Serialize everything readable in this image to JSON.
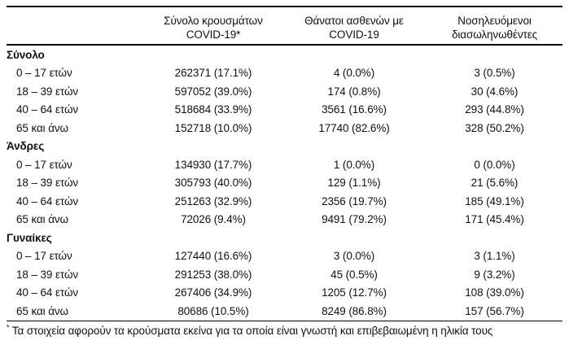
{
  "colors": {
    "text": "#111111",
    "line": "#000000",
    "background": "#ffffff"
  },
  "table": {
    "column_headers": [
      {
        "line1": "Σύνολο κρουσμάτων",
        "line2": "COVID-19*"
      },
      {
        "line1": "Θάνατοι ασθενών με",
        "line2": "COVID-19"
      },
      {
        "line1": "Νοσηλευόμενοι",
        "line2": "διασωληνωθέντες"
      }
    ],
    "sections": [
      {
        "label": "Σύνολο",
        "rows": [
          {
            "label": "0 – 17 ετών",
            "cases": "262371 (17.1%)",
            "deaths": "4 (0.0%)",
            "intubated": "3 (0.5%)"
          },
          {
            "label": "18 – 39 ετών",
            "cases": "597052 (39.0%)",
            "deaths": "174 (0.8%)",
            "intubated": "30 (4.6%)"
          },
          {
            "label": "40 – 64 ετών",
            "cases": "518684 (33.9%)",
            "deaths": "3561 (16.6%)",
            "intubated": "293 (44.8%)"
          },
          {
            "label": "65 και άνω",
            "cases": "152718 (10.0%)",
            "deaths": "17740 (82.6%)",
            "intubated": "328 (50.2%)"
          }
        ]
      },
      {
        "label": "Άνδρες",
        "rows": [
          {
            "label": "0 – 17 ετών",
            "cases": "134930 (17.7%)",
            "deaths": "1 (0.0%)",
            "intubated": "0 (0.0%)"
          },
          {
            "label": "18 – 39 ετών",
            "cases": "305793 (40.0%)",
            "deaths": "129 (1.1%)",
            "intubated": "21 (5.6%)"
          },
          {
            "label": "40 – 64 ετών",
            "cases": "251263 (32.9%)",
            "deaths": "2356 (19.7%)",
            "intubated": "185 (49.1%)"
          },
          {
            "label": "65 και άνω",
            "cases": "72026 (9.4%)",
            "deaths": "9491 (79.2%)",
            "intubated": "171 (45.4%)"
          }
        ]
      },
      {
        "label": "Γυναίκες",
        "rows": [
          {
            "label": "0 – 17 ετών",
            "cases": "127440 (16.6%)",
            "deaths": "3 (0.0%)",
            "intubated": "3 (1.1%)"
          },
          {
            "label": "18 – 39 ετών",
            "cases": "291253 (38.0%)",
            "deaths": "45 (0.5%)",
            "intubated": "9 (3.2%)"
          },
          {
            "label": "40 – 64 ετών",
            "cases": "267406 (34.9%)",
            "deaths": "1205 (12.7%)",
            "intubated": "108 (39.0%)"
          },
          {
            "label": "65 και άνω",
            "cases": "80686 (10.5%)",
            "deaths": "8249 (86.8%)",
            "intubated": "157 (56.7%)"
          }
        ]
      }
    ],
    "footnote": {
      "marker": "*",
      "text": "Τα στοιχεία αφορούν τα κρούσματα εκείνα για τα οποία είναι γνωστή και επιβεβαιωμένη η ηλικία τους"
    }
  }
}
